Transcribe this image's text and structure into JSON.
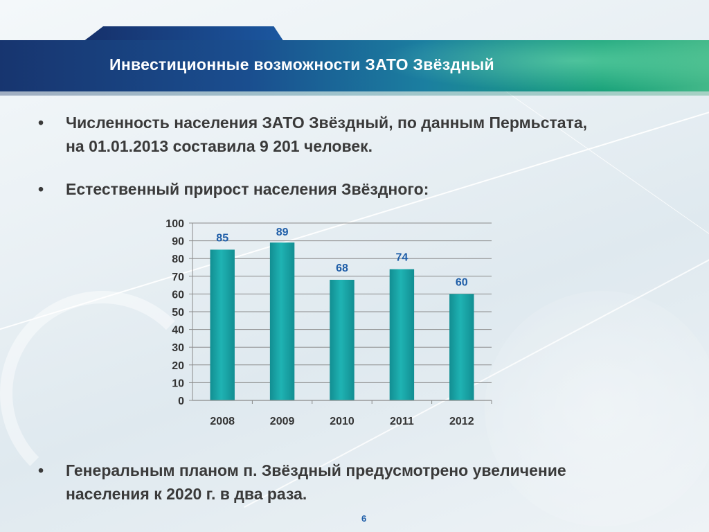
{
  "title": "Инвестиционные возможности ЗАТО Звёздный",
  "bullets": [
    {
      "marker": "•",
      "text": "Численность населения ЗАТО Звёздный, по данным Пермьстата, на 01.01.2013 составила 9 201 человек."
    },
    {
      "marker": "•",
      "text": "Естественный прирост населения Звёздного:"
    },
    {
      "marker": "•",
      "text": "Генеральным планом п. Звёздный предусмотрено увеличение населения к 2020 г. в два раза."
    }
  ],
  "page_number": "6",
  "colors": {
    "bar": "#1fb3b3",
    "bar_dark": "#128e92",
    "label": "#1f5ea8",
    "tick": "#333333"
  },
  "chart_data": {
    "type": "bar",
    "categories": [
      "2008",
      "2009",
      "2010",
      "2011",
      "2012"
    ],
    "values": [
      85,
      89,
      68,
      74,
      60
    ],
    "ylim": [
      0,
      100
    ],
    "yticks": [
      0,
      10,
      20,
      30,
      40,
      50,
      60,
      70,
      80,
      90,
      100
    ],
    "grid": true,
    "title": "",
    "xlabel": "",
    "ylabel": ""
  }
}
